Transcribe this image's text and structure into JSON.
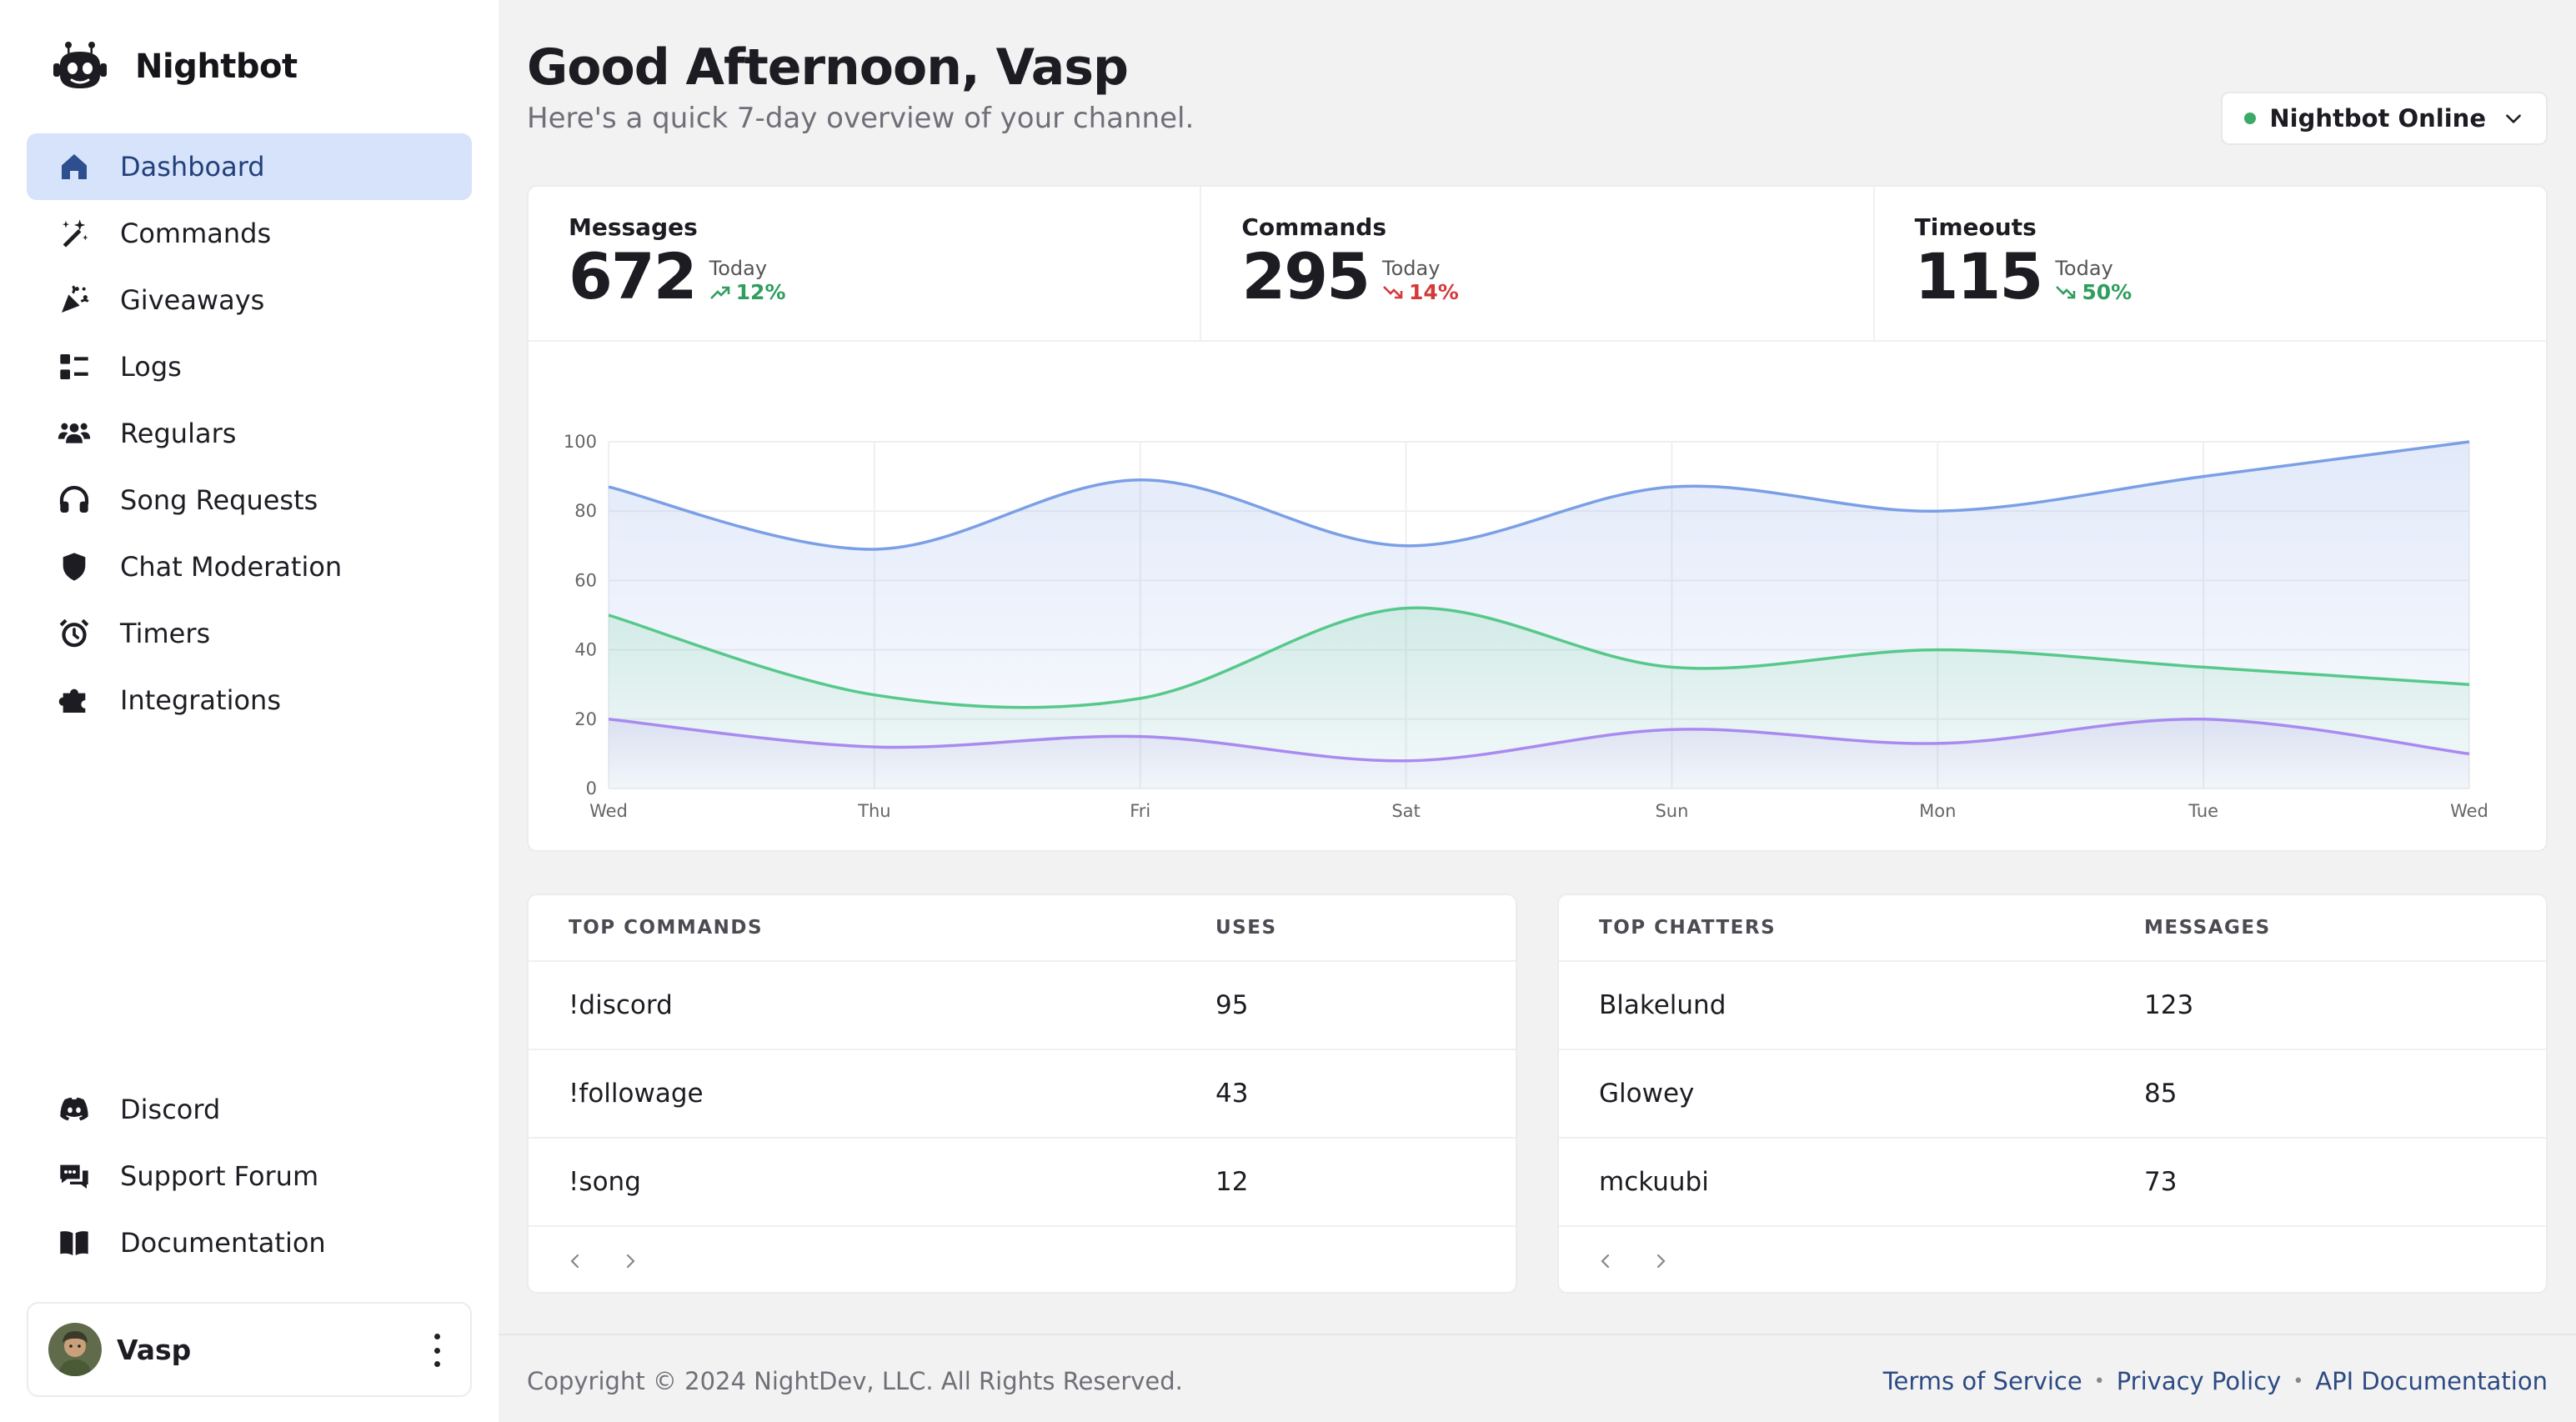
{
  "brand": {
    "name": "Nightbot"
  },
  "nav": {
    "items": [
      {
        "label": "Dashboard",
        "icon": "home-icon",
        "active": true
      },
      {
        "label": "Commands",
        "icon": "magic-wand-icon"
      },
      {
        "label": "Giveaways",
        "icon": "party-popper-icon"
      },
      {
        "label": "Logs",
        "icon": "list-icon"
      },
      {
        "label": "Regulars",
        "icon": "users-icon"
      },
      {
        "label": "Song Requests",
        "icon": "headphones-icon"
      },
      {
        "label": "Chat Moderation",
        "icon": "shield-icon"
      },
      {
        "label": "Timers",
        "icon": "alarm-clock-icon"
      },
      {
        "label": "Integrations",
        "icon": "puzzle-icon"
      }
    ],
    "bottom": [
      {
        "label": "Discord",
        "icon": "discord-icon"
      },
      {
        "label": "Support Forum",
        "icon": "chat-bubbles-icon"
      },
      {
        "label": "Documentation",
        "icon": "book-icon"
      }
    ]
  },
  "user": {
    "name": "Vasp"
  },
  "header": {
    "greeting": "Good Afternoon, Vasp",
    "subtitle": "Here's a quick 7-day overview of your channel.",
    "status": "Nightbot Online",
    "status_color": "#3ca969"
  },
  "stats": [
    {
      "title": "Messages",
      "value": "672",
      "today": "Today",
      "change": "12%",
      "direction": "up",
      "color": "#2f9e5e"
    },
    {
      "title": "Commands",
      "value": "295",
      "today": "Today",
      "change": "14%",
      "direction": "down",
      "color": "#d43a3a"
    },
    {
      "title": "Timeouts",
      "value": "115",
      "today": "Today",
      "change": "50%",
      "direction": "down",
      "color": "#2f9e5e"
    }
  ],
  "chart_data": {
    "type": "area",
    "categories": [
      "Wed",
      "Thu",
      "Fri",
      "Sat",
      "Sun",
      "Mon",
      "Tue",
      "Wed"
    ],
    "ylim": [
      0,
      100
    ],
    "yticks": [
      0,
      20,
      40,
      60,
      80,
      100
    ],
    "grid": true,
    "series": [
      {
        "values": [
          87,
          69,
          89,
          70,
          87,
          80,
          90,
          100
        ],
        "color": "#7b9fe6"
      },
      {
        "values": [
          50,
          27,
          26,
          52,
          35,
          40,
          35,
          30
        ],
        "color": "#56c98a"
      },
      {
        "values": [
          20,
          12,
          15,
          8,
          17,
          13,
          20,
          10
        ],
        "color": "#a98af0"
      }
    ]
  },
  "top_commands": {
    "headers": [
      "TOP COMMANDS",
      "USES"
    ],
    "rows": [
      [
        "!discord",
        "95"
      ],
      [
        "!followage",
        "43"
      ],
      [
        "!song",
        "12"
      ]
    ]
  },
  "top_chatters": {
    "headers": [
      "TOP CHATTERS",
      "MESSAGES"
    ],
    "rows": [
      [
        "Blakelund",
        "123"
      ],
      [
        "Glowey",
        "85"
      ],
      [
        "mckuubi",
        "73"
      ]
    ]
  },
  "footer": {
    "copyright": "Copyright © 2024 NightDev, LLC. All Rights Reserved.",
    "links": [
      "Terms of Service",
      "Privacy Policy",
      "API Documentation"
    ],
    "separator": "•"
  }
}
